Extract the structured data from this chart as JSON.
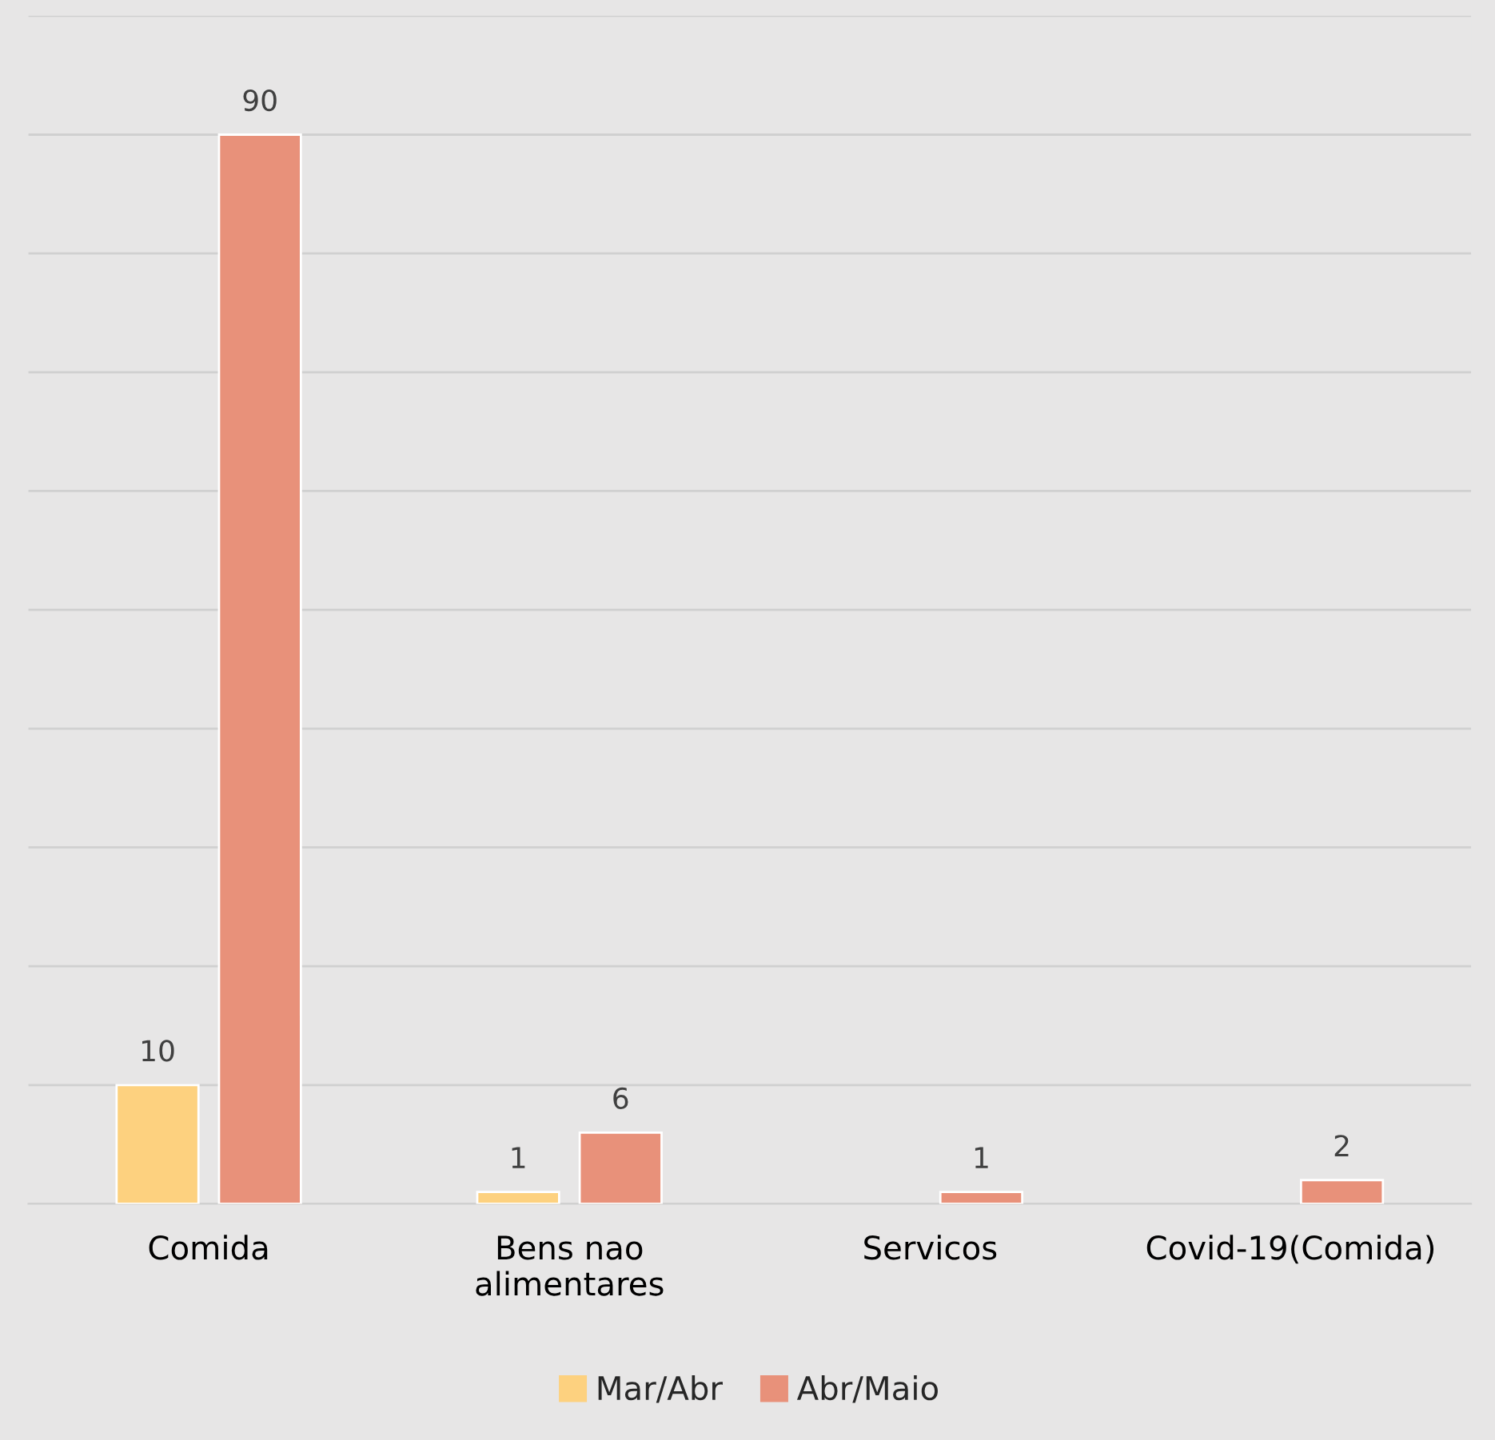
{
  "chart_data": {
    "type": "bar",
    "categories": [
      "Comida",
      "Bens nao\nalimentares",
      "Servicos",
      "Covid-19(Comida)"
    ],
    "series": [
      {
        "name": "Mar/Abr",
        "color": "#fdd17f",
        "values": [
          10,
          1,
          null,
          null
        ]
      },
      {
        "name": "Abr/Maio",
        "color": "#e8917a",
        "values": [
          90,
          6,
          1,
          2
        ]
      }
    ],
    "ylim": [
      0,
      100
    ],
    "yticks": [
      {
        "value": 0,
        "label": null
      },
      {
        "value": 10,
        "label": null
      },
      {
        "value": 20,
        "label": null
      },
      {
        "value": 30,
        "label": null
      },
      {
        "value": 40,
        "label": null
      },
      {
        "value": 50,
        "label": null
      },
      {
        "value": 60,
        "label": null
      },
      {
        "value": 70,
        "label": null
      },
      {
        "value": 80,
        "label": null
      },
      {
        "value": 90,
        "label": null
      },
      {
        "value": 100,
        "label": null
      }
    ],
    "tick_labels": "x",
    "grid": "y",
    "data_labels": true,
    "legend": "bottom"
  }
}
